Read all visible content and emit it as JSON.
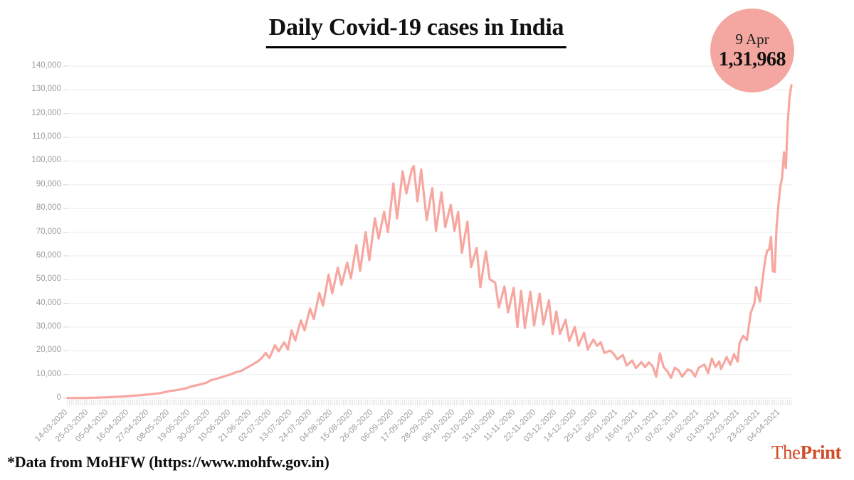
{
  "title": "Daily Covid-19 cases in India",
  "badge": {
    "date": "9 Apr",
    "value": "1,31,968",
    "bg_color": "#f3a7a0"
  },
  "footer": {
    "note": "*Data from MoHFW (https://www.mohfw.gov.in)"
  },
  "logo": {
    "the": "The",
    "print": "Print",
    "color": "#d04b26"
  },
  "chart_data": {
    "type": "line",
    "title": "Daily Covid-19 cases in India",
    "xlabel": "",
    "ylabel": "",
    "ylim": [
      0,
      140000
    ],
    "y_ticks": [
      0,
      10000,
      20000,
      30000,
      40000,
      50000,
      60000,
      70000,
      80000,
      90000,
      100000,
      110000,
      120000,
      130000,
      140000
    ],
    "x_tick_labels": [
      "14-03-2020",
      "25-03-2020",
      "05-04-2020",
      "16-04-2020",
      "27-04-2020",
      "08-05-2020",
      "19-05-2020",
      "30-05-2020",
      "10-06-2020",
      "21-06-2020",
      "02-07-2020",
      "13-07-2020",
      "24-07-2020",
      "04-08-2020",
      "15-08-2020",
      "26-08-2020",
      "06-09-2020",
      "17-09-2020",
      "28-09-2020",
      "09-10-2020",
      "20-10-2020",
      "31-10-2020",
      "11-11-2020",
      "22-11-2020",
      "03-12-2020",
      "14-12-2020",
      "25-12-2020",
      "05-01-2021",
      "16-01-2021",
      "27-01-2021",
      "07-02-2021",
      "18-02-2021",
      "01-03-2021",
      "12-03-2021",
      "23-03-2021",
      "04-04-2021"
    ],
    "x_tick_interval_days": 11,
    "x_total_days": 391,
    "x_range": [
      "14-03-2020",
      "09-04-2021"
    ],
    "grid": "horizontal",
    "legend": "none",
    "colors": {
      "line": "#f7a7a0",
      "grid": "#efefef",
      "axis_label": "#9b9b9b",
      "day_tick": "#dcdcdc",
      "tick_stub": "#d2d2d2"
    },
    "annotation": {
      "label": "9 Apr",
      "value": 131968,
      "display": "1,31,968"
    },
    "series": [
      {
        "name": "Daily new Covid-19 cases",
        "x_unit": "days since 14-03-2020",
        "points": [
          [
            0,
            84
          ],
          [
            3,
            95
          ],
          [
            6,
            107
          ],
          [
            9,
            125
          ],
          [
            11,
            150
          ],
          [
            14,
            200
          ],
          [
            17,
            270
          ],
          [
            20,
            360
          ],
          [
            22,
            430
          ],
          [
            25,
            540
          ],
          [
            28,
            660
          ],
          [
            31,
            800
          ],
          [
            33,
            920
          ],
          [
            36,
            1070
          ],
          [
            39,
            1260
          ],
          [
            42,
            1460
          ],
          [
            44,
            1610
          ],
          [
            47,
            1870
          ],
          [
            50,
            2160
          ],
          [
            53,
            2630
          ],
          [
            55,
            3020
          ],
          [
            58,
            3340
          ],
          [
            61,
            3720
          ],
          [
            64,
            4210
          ],
          [
            66,
            4760
          ],
          [
            69,
            5340
          ],
          [
            72,
            5910
          ],
          [
            75,
            6540
          ],
          [
            77,
            7450
          ],
          [
            80,
            8110
          ],
          [
            83,
            8820
          ],
          [
            86,
            9550
          ],
          [
            88,
            10050
          ],
          [
            91,
            10960
          ],
          [
            94,
            11580
          ],
          [
            97,
            12940
          ],
          [
            100,
            14250
          ],
          [
            103,
            15680
          ],
          [
            105,
            17070
          ],
          [
            107,
            19100
          ],
          [
            109,
            16900
          ],
          [
            112,
            22300
          ],
          [
            114,
            19800
          ],
          [
            117,
            23600
          ],
          [
            119,
            20600
          ],
          [
            121,
            28600
          ],
          [
            123,
            24300
          ],
          [
            126,
            32800
          ],
          [
            128,
            28600
          ],
          [
            131,
            37800
          ],
          [
            133,
            33400
          ],
          [
            136,
            44400
          ],
          [
            138,
            39000
          ],
          [
            141,
            52100
          ],
          [
            143,
            44200
          ],
          [
            146,
            55100
          ],
          [
            148,
            47800
          ],
          [
            151,
            57200
          ],
          [
            153,
            50600
          ],
          [
            156,
            64600
          ],
          [
            158,
            53700
          ],
          [
            161,
            70000
          ],
          [
            163,
            58200
          ],
          [
            166,
            75900
          ],
          [
            168,
            67300
          ],
          [
            171,
            78600
          ],
          [
            173,
            70000
          ],
          [
            176,
            90600
          ],
          [
            178,
            75800
          ],
          [
            181,
            95700
          ],
          [
            183,
            86300
          ],
          [
            186,
            96600
          ],
          [
            187,
            97894
          ],
          [
            189,
            83000
          ],
          [
            191,
            96400
          ],
          [
            194,
            75100
          ],
          [
            197,
            88600
          ],
          [
            199,
            70600
          ],
          [
            202,
            86800
          ],
          [
            204,
            72100
          ],
          [
            207,
            81500
          ],
          [
            209,
            70600
          ],
          [
            211,
            78500
          ],
          [
            213,
            61300
          ],
          [
            216,
            74400
          ],
          [
            218,
            55300
          ],
          [
            221,
            63400
          ],
          [
            223,
            46800
          ],
          [
            226,
            61900
          ],
          [
            228,
            50200
          ],
          [
            231,
            48700
          ],
          [
            233,
            38300
          ],
          [
            236,
            47100
          ],
          [
            238,
            36200
          ],
          [
            241,
            46500
          ],
          [
            243,
            30000
          ],
          [
            245,
            45200
          ],
          [
            247,
            29600
          ],
          [
            250,
            44900
          ],
          [
            252,
            30700
          ],
          [
            255,
            44100
          ],
          [
            257,
            31100
          ],
          [
            260,
            41300
          ],
          [
            262,
            27100
          ],
          [
            264,
            36600
          ],
          [
            266,
            27100
          ],
          [
            269,
            33100
          ],
          [
            271,
            24100
          ],
          [
            274,
            30100
          ],
          [
            276,
            22100
          ],
          [
            279,
            27600
          ],
          [
            281,
            20600
          ],
          [
            284,
            24700
          ],
          [
            286,
            22100
          ],
          [
            288,
            23600
          ],
          [
            290,
            19100
          ],
          [
            293,
            20100
          ],
          [
            295,
            18700
          ],
          [
            297,
            16400
          ],
          [
            300,
            18200
          ],
          [
            302,
            13800
          ],
          [
            305,
            15900
          ],
          [
            307,
            12700
          ],
          [
            310,
            15200
          ],
          [
            312,
            13100
          ],
          [
            314,
            15100
          ],
          [
            316,
            13600
          ],
          [
            318,
            9100
          ],
          [
            320,
            18900
          ],
          [
            322,
            13100
          ],
          [
            324,
            11400
          ],
          [
            326,
            8600
          ],
          [
            328,
            12900
          ],
          [
            330,
            11800
          ],
          [
            332,
            9100
          ],
          [
            335,
            12100
          ],
          [
            337,
            11600
          ],
          [
            339,
            9100
          ],
          [
            341,
            12900
          ],
          [
            344,
            14200
          ],
          [
            346,
            10600
          ],
          [
            348,
            16700
          ],
          [
            350,
            13200
          ],
          [
            352,
            15500
          ],
          [
            353,
            12300
          ],
          [
            356,
            17400
          ],
          [
            358,
            14100
          ],
          [
            360,
            18600
          ],
          [
            362,
            15400
          ],
          [
            363,
            23300
          ],
          [
            365,
            26300
          ],
          [
            367,
            24500
          ],
          [
            369,
            35900
          ],
          [
            371,
            40000
          ],
          [
            372,
            46900
          ],
          [
            374,
            40700
          ],
          [
            375,
            47300
          ],
          [
            376,
            53500
          ],
          [
            377,
            59100
          ],
          [
            378,
            62300
          ],
          [
            379,
            62700
          ],
          [
            380,
            68000
          ],
          [
            381,
            53500
          ],
          [
            382,
            53200
          ],
          [
            383,
            72300
          ],
          [
            384,
            81500
          ],
          [
            385,
            89100
          ],
          [
            386,
            93000
          ],
          [
            387,
            103600
          ],
          [
            388,
            97000
          ],
          [
            389,
            115700
          ],
          [
            390,
            126800
          ],
          [
            391,
            131968
          ]
        ]
      }
    ]
  }
}
